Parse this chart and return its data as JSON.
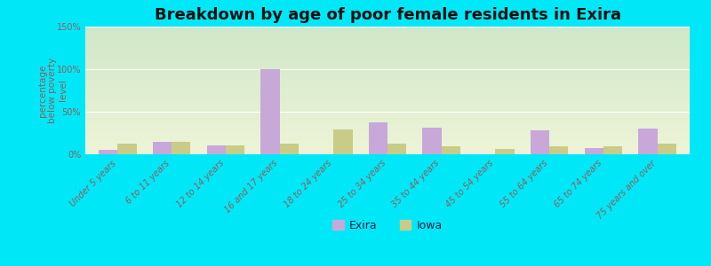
{
  "title": "Breakdown by age of poor female residents in Exira",
  "ylabel": "percentage\nbelow poverty\nlevel",
  "categories": [
    "Under 5 years",
    "6 to 11 years",
    "12 to 14 years",
    "16 and 17 years",
    "18 to 24 years",
    "25 to 34 years",
    "35 to 44 years",
    "45 to 54 years",
    "55 to 64 years",
    "65 to 74 years",
    "75 years and over"
  ],
  "exira_values": [
    5,
    15,
    10,
    100,
    0,
    37,
    31,
    0,
    28,
    7,
    30
  ],
  "iowa_values": [
    13,
    15,
    10,
    13,
    29,
    13,
    9,
    6,
    9,
    9,
    12
  ],
  "exira_color": "#c8a8d8",
  "iowa_color": "#c8cc88",
  "bg_outer": "#00e8f8",
  "grad_top": "#d0e8c8",
  "grad_bottom": "#eef4d8",
  "ylim": [
    0,
    150
  ],
  "yticks": [
    0,
    50,
    100,
    150
  ],
  "ytick_labels": [
    "0%",
    "50%",
    "100%",
    "150%"
  ],
  "bar_width": 0.35,
  "title_fontsize": 13,
  "axis_label_fontsize": 7.5,
  "tick_fontsize": 7,
  "legend_fontsize": 9,
  "tick_color": "#886060",
  "label_color": "#886060"
}
